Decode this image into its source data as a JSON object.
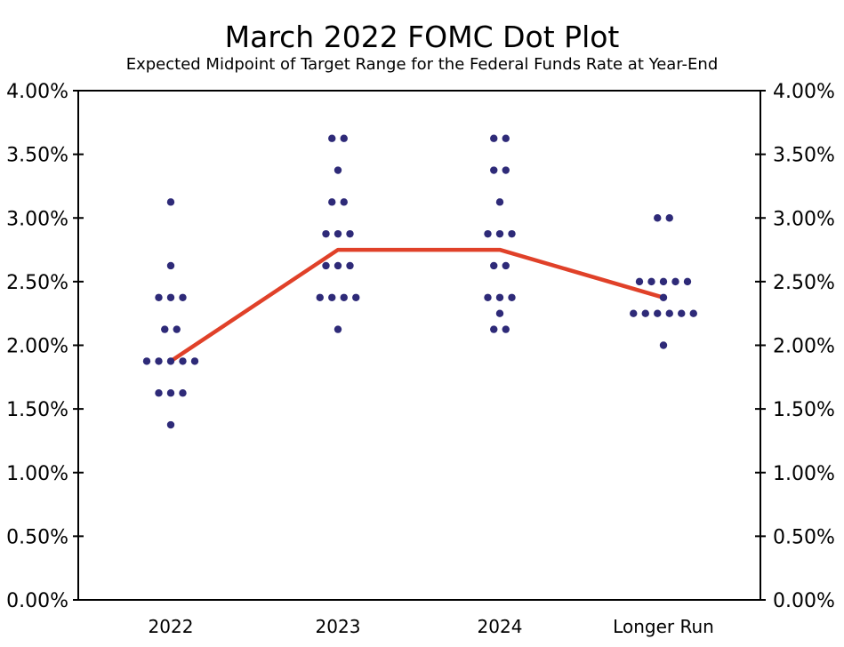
{
  "header": {
    "title": "March 2022 FOMC Dot Plot",
    "subtitle": "Expected Midpoint of Target Range for the Federal Funds Rate at Year-End"
  },
  "chart_data": {
    "type": "scatter",
    "title": "March 2022 FOMC Dot Plot",
    "subtitle": "Expected Midpoint of Target Range for the Federal Funds Rate at Year-End",
    "categories": [
      "2022",
      "2023",
      "2024",
      "Longer Run"
    ],
    "y_axis": {
      "ticks": [
        "4.00%",
        "3.50%",
        "3.00%",
        "2.50%",
        "2.00%",
        "1.50%",
        "1.00%",
        "0.50%",
        "0.00%"
      ],
      "tick_values": [
        4.0,
        3.5,
        3.0,
        2.5,
        2.0,
        1.5,
        1.0,
        0.5,
        0.0
      ],
      "range": [
        0,
        4
      ],
      "labels_on_both_sides": true
    },
    "grid": false,
    "legend": "none",
    "dot_color": "#2e2a78",
    "series": [
      {
        "name": "2022",
        "dots": [
          {
            "value": 3.125,
            "count": 1
          },
          {
            "value": 2.625,
            "count": 1
          },
          {
            "value": 2.375,
            "count": 3
          },
          {
            "value": 2.125,
            "count": 2
          },
          {
            "value": 1.875,
            "count": 5
          },
          {
            "value": 1.625,
            "count": 3
          },
          {
            "value": 1.375,
            "count": 1
          }
        ]
      },
      {
        "name": "2023",
        "dots": [
          {
            "value": 3.625,
            "count": 2
          },
          {
            "value": 3.375,
            "count": 1
          },
          {
            "value": 3.125,
            "count": 2
          },
          {
            "value": 2.875,
            "count": 3
          },
          {
            "value": 2.625,
            "count": 3
          },
          {
            "value": 2.375,
            "count": 4
          },
          {
            "value": 2.125,
            "count": 1
          }
        ]
      },
      {
        "name": "2024",
        "dots": [
          {
            "value": 3.625,
            "count": 2
          },
          {
            "value": 3.375,
            "count": 2
          },
          {
            "value": 3.125,
            "count": 1
          },
          {
            "value": 2.875,
            "count": 3
          },
          {
            "value": 2.625,
            "count": 2
          },
          {
            "value": 2.375,
            "count": 3
          },
          {
            "value": 2.25,
            "count": 1
          },
          {
            "value": 2.125,
            "count": 2
          }
        ]
      },
      {
        "name": "Longer Run",
        "dots": [
          {
            "value": 3.0,
            "count": 2
          },
          {
            "value": 2.5,
            "count": 5
          },
          {
            "value": 2.375,
            "count": 1
          },
          {
            "value": 2.25,
            "count": 6
          },
          {
            "value": 2.0,
            "count": 1
          }
        ]
      }
    ],
    "median_line": {
      "name": "median",
      "values": [
        1.875,
        2.75,
        2.75,
        2.375
      ],
      "color": "#e04129"
    }
  }
}
